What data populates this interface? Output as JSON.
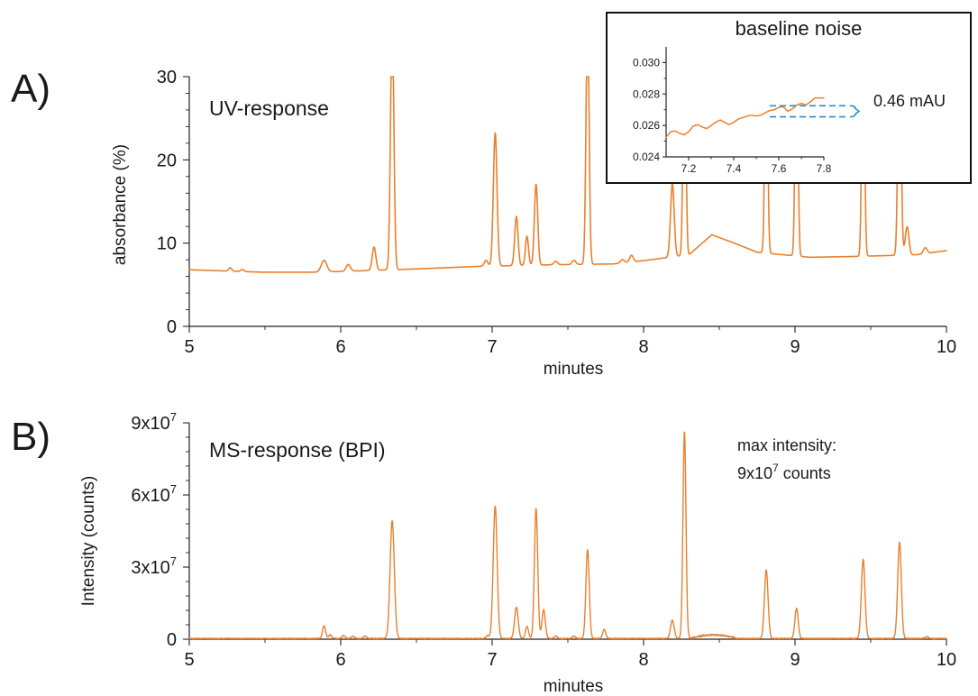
{
  "colors": {
    "trace": "#e8802e",
    "bracket": "#2a8fc7",
    "axis": "#222222",
    "inset_border": "#111111"
  },
  "chart_data": [
    {
      "id": "uv",
      "type": "line",
      "panel_label": "A)",
      "annotation": "UV-response",
      "xlabel": "minutes",
      "ylabel": "absorbance (%)",
      "xlim": [
        5,
        10
      ],
      "ylim": [
        0,
        30
      ],
      "xticks": [
        5,
        6,
        7,
        8,
        9,
        10
      ],
      "xtick_labels": [
        "5",
        "6",
        "7",
        "8",
        "9",
        "10"
      ],
      "yticks": [
        0,
        10,
        20,
        30
      ],
      "ytick_labels": [
        "0",
        "10",
        "20",
        "30"
      ],
      "baseline": [
        [
          5.0,
          6.8
        ],
        [
          5.5,
          6.5
        ],
        [
          5.8,
          6.5
        ],
        [
          6.0,
          6.6
        ],
        [
          6.5,
          6.9
        ],
        [
          6.9,
          7.2
        ],
        [
          7.4,
          7.4
        ],
        [
          7.8,
          7.5
        ],
        [
          8.0,
          7.9
        ],
        [
          8.3,
          8.6
        ],
        [
          8.45,
          11.0
        ],
        [
          8.6,
          10.0
        ],
        [
          8.75,
          8.9
        ],
        [
          9.1,
          8.3
        ],
        [
          9.4,
          8.4
        ],
        [
          9.6,
          8.5
        ],
        [
          9.8,
          8.6
        ],
        [
          10.0,
          9.1
        ]
      ],
      "peaks": [
        {
          "rt": 5.27,
          "height": 0.4,
          "width": 0.01
        },
        {
          "rt": 5.35,
          "height": 0.25,
          "width": 0.01
        },
        {
          "rt": 5.89,
          "height": 1.4,
          "width": 0.018
        },
        {
          "rt": 6.05,
          "height": 0.8,
          "width": 0.014
        },
        {
          "rt": 6.22,
          "height": 2.8,
          "width": 0.012
        },
        {
          "rt": 6.34,
          "height": 30,
          "width": 0.011
        },
        {
          "rt": 6.96,
          "height": 0.7,
          "width": 0.012
        },
        {
          "rt": 7.02,
          "height": 16.0,
          "width": 0.012
        },
        {
          "rt": 7.16,
          "height": 5.9,
          "width": 0.011
        },
        {
          "rt": 7.23,
          "height": 3.5,
          "width": 0.01
        },
        {
          "rt": 7.29,
          "height": 9.7,
          "width": 0.011
        },
        {
          "rt": 7.42,
          "height": 0.4,
          "width": 0.012
        },
        {
          "rt": 7.54,
          "height": 0.5,
          "width": 0.012
        },
        {
          "rt": 7.63,
          "height": 30,
          "width": 0.01
        },
        {
          "rt": 7.86,
          "height": 0.4,
          "width": 0.012
        },
        {
          "rt": 7.92,
          "height": 0.8,
          "width": 0.012
        },
        {
          "rt": 8.19,
          "height": 8.8,
          "width": 0.012
        },
        {
          "rt": 8.27,
          "height": 30,
          "width": 0.009
        },
        {
          "rt": 8.81,
          "height": 30,
          "width": 0.009
        },
        {
          "rt": 9.01,
          "height": 30,
          "width": 0.009
        },
        {
          "rt": 9.45,
          "height": 30,
          "width": 0.009
        },
        {
          "rt": 9.69,
          "height": 30,
          "width": 0.01
        },
        {
          "rt": 9.74,
          "height": 3.4,
          "width": 0.012
        },
        {
          "rt": 9.86,
          "height": 0.7,
          "width": 0.012
        }
      ]
    },
    {
      "id": "ms",
      "type": "line",
      "panel_label": "B)",
      "annotation": "MS-response (BPI)",
      "annotation2_line1": "max intensity:",
      "annotation2_line2_base": "9x10",
      "annotation2_line2_exp": "7",
      "annotation2_line2_rest": " counts",
      "xlabel": "minutes",
      "ylabel": "Intensity (counts)",
      "xlim": [
        5,
        10
      ],
      "ylim": [
        0,
        90000000
      ],
      "xticks": [
        5,
        6,
        7,
        8,
        9,
        10
      ],
      "xtick_labels": [
        "5",
        "6",
        "7",
        "8",
        "9",
        "10"
      ],
      "yticks": [
        0,
        30000000,
        60000000,
        90000000
      ],
      "ytick_labels": [
        {
          "base": "0",
          "exp": ""
        },
        {
          "base": "3x10",
          "exp": "7"
        },
        {
          "base": "6x10",
          "exp": "7"
        },
        {
          "base": "9x10",
          "exp": "7"
        }
      ],
      "baseline": [
        [
          5.0,
          300000
        ],
        [
          10.0,
          300000
        ]
      ],
      "hump": {
        "start": 8.3,
        "end": 8.62,
        "height": 1500000
      },
      "peaks": [
        {
          "rt": 5.89,
          "height": 5300000,
          "width": 0.01
        },
        {
          "rt": 5.93,
          "height": 1500000,
          "width": 0.01
        },
        {
          "rt": 6.02,
          "height": 1200000,
          "width": 0.01
        },
        {
          "rt": 6.08,
          "height": 1000000,
          "width": 0.01
        },
        {
          "rt": 6.16,
          "height": 1000000,
          "width": 0.01
        },
        {
          "rt": 6.34,
          "height": 49000000,
          "width": 0.014
        },
        {
          "rt": 6.97,
          "height": 1200000,
          "width": 0.01
        },
        {
          "rt": 7.02,
          "height": 55000000,
          "width": 0.013
        },
        {
          "rt": 7.16,
          "height": 13000000,
          "width": 0.012
        },
        {
          "rt": 7.23,
          "height": 5000000,
          "width": 0.01
        },
        {
          "rt": 7.29,
          "height": 54000000,
          "width": 0.011
        },
        {
          "rt": 7.34,
          "height": 12000000,
          "width": 0.011
        },
        {
          "rt": 7.42,
          "height": 1000000,
          "width": 0.01
        },
        {
          "rt": 7.54,
          "height": 1000000,
          "width": 0.01
        },
        {
          "rt": 7.63,
          "height": 37000000,
          "width": 0.011
        },
        {
          "rt": 7.74,
          "height": 3800000,
          "width": 0.01
        },
        {
          "rt": 8.19,
          "height": 7600000,
          "width": 0.012
        },
        {
          "rt": 8.27,
          "height": 86000000,
          "width": 0.01
        },
        {
          "rt": 8.81,
          "height": 28500000,
          "width": 0.012
        },
        {
          "rt": 9.01,
          "height": 12500000,
          "width": 0.011
        },
        {
          "rt": 9.45,
          "height": 33000000,
          "width": 0.012
        },
        {
          "rt": 9.69,
          "height": 40000000,
          "width": 0.012
        },
        {
          "rt": 9.87,
          "height": 800000,
          "width": 0.01
        }
      ]
    },
    {
      "id": "inset",
      "type": "line",
      "title": "baseline noise",
      "xlim": [
        7.1,
        7.8
      ],
      "ylim": [
        0.024,
        0.031
      ],
      "xticks": [
        7.2,
        7.4,
        7.6,
        7.8
      ],
      "xtick_labels": [
        "7.2",
        "7.4",
        "7.6",
        "7.8"
      ],
      "yticks": [
        0.024,
        0.026,
        0.028,
        0.03
      ],
      "ytick_labels": [
        "0.024",
        "0.026",
        "0.028",
        "0.030"
      ],
      "noise_annotation": "0.46 mAU",
      "noise_band": [
        0.02655,
        0.02725
      ],
      "points": [
        [
          7.1,
          0.02525
        ],
        [
          7.12,
          0.0256
        ],
        [
          7.14,
          0.02565
        ],
        [
          7.16,
          0.0255
        ],
        [
          7.18,
          0.0254
        ],
        [
          7.2,
          0.0256
        ],
        [
          7.22,
          0.02595
        ],
        [
          7.24,
          0.02605
        ],
        [
          7.26,
          0.0259
        ],
        [
          7.28,
          0.0258
        ],
        [
          7.3,
          0.026
        ],
        [
          7.32,
          0.0262
        ],
        [
          7.34,
          0.02635
        ],
        [
          7.36,
          0.0262
        ],
        [
          7.38,
          0.02605
        ],
        [
          7.4,
          0.0262
        ],
        [
          7.42,
          0.0264
        ],
        [
          7.44,
          0.0265
        ],
        [
          7.46,
          0.0266
        ],
        [
          7.48,
          0.02665
        ],
        [
          7.5,
          0.0266
        ],
        [
          7.52,
          0.02665
        ],
        [
          7.54,
          0.0268
        ],
        [
          7.56,
          0.02695
        ],
        [
          7.58,
          0.027
        ],
        [
          7.6,
          0.02715
        ],
        [
          7.62,
          0.0272
        ],
        [
          7.64,
          0.0269
        ],
        [
          7.66,
          0.02705
        ],
        [
          7.68,
          0.0273
        ],
        [
          7.7,
          0.0274
        ],
        [
          7.72,
          0.0273
        ],
        [
          7.74,
          0.0275
        ],
        [
          7.76,
          0.02775
        ],
        [
          7.78,
          0.02775
        ],
        [
          7.8,
          0.02775
        ]
      ]
    }
  ]
}
